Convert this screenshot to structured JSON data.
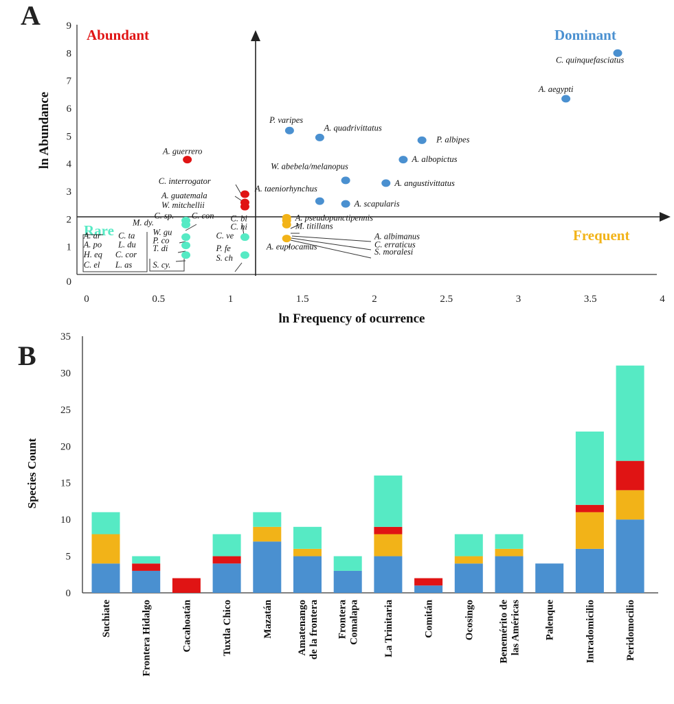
{
  "panels": {
    "a": "A",
    "b": "B"
  },
  "colors": {
    "dominant": "#4a90d0",
    "frequent": "#f2b318",
    "abundant": "#e01414",
    "rare": "#56eac4"
  },
  "chart_data": [
    {
      "type": "scatter",
      "panel": "A",
      "xlabel": "ln Frequency of ocurrence",
      "ylabel": "ln Abundance",
      "xlim": [
        0,
        4
      ],
      "ylim": [
        0,
        9
      ],
      "x_ticks": [
        "0",
        "0.5",
        "1",
        "1.5",
        "2",
        "2.5",
        "3",
        "3.5",
        "4"
      ],
      "y_ticks": [
        "0",
        "1",
        "2",
        "3",
        "4",
        "5",
        "6",
        "7",
        "8",
        "9"
      ],
      "quadrants": {
        "abundant": "Abundant",
        "dominant": "Dominant",
        "rare": "Rare",
        "frequent": "Frequent"
      },
      "points": [
        {
          "group": "dominant",
          "x": 3.69,
          "y": 8.0
        },
        {
          "group": "dominant",
          "x": 3.33,
          "y": 6.35
        },
        {
          "group": "dominant",
          "x": 1.41,
          "y": 5.2
        },
        {
          "group": "dominant",
          "x": 1.62,
          "y": 4.95
        },
        {
          "group": "dominant",
          "x": 2.33,
          "y": 4.85
        },
        {
          "group": "dominant",
          "x": 2.2,
          "y": 4.15
        },
        {
          "group": "dominant",
          "x": 1.8,
          "y": 3.4
        },
        {
          "group": "dominant",
          "x": 2.08,
          "y": 3.3
        },
        {
          "group": "dominant",
          "x": 1.62,
          "y": 2.65
        },
        {
          "group": "dominant",
          "x": 1.8,
          "y": 2.55
        },
        {
          "group": "abundant",
          "x": 0.7,
          "y": 4.15
        },
        {
          "group": "abundant",
          "x": 1.1,
          "y": 2.9
        },
        {
          "group": "abundant",
          "x": 1.1,
          "y": 2.6
        },
        {
          "group": "abundant",
          "x": 1.1,
          "y": 2.45
        },
        {
          "group": "frequent",
          "x": 1.39,
          "y": 2.05
        },
        {
          "group": "frequent",
          "x": 1.39,
          "y": 1.95
        },
        {
          "group": "frequent",
          "x": 1.39,
          "y": 1.8
        },
        {
          "group": "frequent",
          "x": 1.39,
          "y": 1.3
        },
        {
          "group": "rare",
          "x": 0.69,
          "y": 1.95
        },
        {
          "group": "rare",
          "x": 0.69,
          "y": 1.8
        },
        {
          "group": "rare",
          "x": 0.69,
          "y": 1.35
        },
        {
          "group": "rare",
          "x": 0.69,
          "y": 1.05
        },
        {
          "group": "rare",
          "x": 0.69,
          "y": 0.7
        },
        {
          "group": "rare",
          "x": 1.1,
          "y": 1.35
        },
        {
          "group": "rare",
          "x": 1.1,
          "y": 0.7
        }
      ],
      "labels": [
        {
          "text": "C. quinquefasciatus",
          "x": 3.26,
          "y": 7.65
        },
        {
          "text": "A. aegypti",
          "x": 3.14,
          "y": 6.6
        },
        {
          "text": "P. varipes",
          "x": 1.27,
          "y": 5.48
        },
        {
          "text": "A. quadrivittatus",
          "x": 1.65,
          "y": 5.2
        },
        {
          "text": "P. albipes",
          "x": 2.43,
          "y": 4.77
        },
        {
          "text": "A. albopictus",
          "x": 2.26,
          "y": 4.06
        },
        {
          "text": "W. abebela/melanopus",
          "x": 1.28,
          "y": 3.8
        },
        {
          "text": "A. angustivittatus",
          "x": 2.14,
          "y": 3.2
        },
        {
          "text": "A. taeniorhynchus",
          "x": 1.17,
          "y": 3.0
        },
        {
          "text": "A. scapularis",
          "x": 1.86,
          "y": 2.46
        },
        {
          "text": "A. guerrero",
          "x": 0.53,
          "y": 4.35
        },
        {
          "text": "C. interrogator",
          "x": 0.5,
          "y": 3.27
        },
        {
          "text": "A. guatemala",
          "x": 0.52,
          "y": 2.75
        },
        {
          "text": "W. mitchellii",
          "x": 0.52,
          "y": 2.4
        },
        {
          "text": "A. pseudopunctipennis",
          "x": 1.45,
          "y": 1.95
        },
        {
          "text": "M. titillans",
          "x": 1.45,
          "y": 1.65
        },
        {
          "text": "A. albimanus",
          "x": 2.0,
          "y": 1.28
        },
        {
          "text": "A. euplocamus",
          "x": 1.25,
          "y": 0.9
        },
        {
          "text": "C. erraticus",
          "x": 2.0,
          "y": 0.98
        },
        {
          "text": "S. moralesi",
          "x": 2.0,
          "y": 0.72
        },
        {
          "text": "C. sp.",
          "x": 0.47,
          "y": 2.02
        },
        {
          "text": "C. con",
          "x": 0.73,
          "y": 2.02
        },
        {
          "text": "M. dy.",
          "x": 0.32,
          "y": 1.77
        },
        {
          "text": "C. bi",
          "x": 1.0,
          "y": 1.92
        },
        {
          "text": "C. ni",
          "x": 1.0,
          "y": 1.63
        },
        {
          "text": "W. gu",
          "x": 0.46,
          "y": 1.43
        },
        {
          "text": "C. ve",
          "x": 0.9,
          "y": 1.3
        },
        {
          "text": "A. ar",
          "x": -0.02,
          "y": 1.3
        },
        {
          "text": "C. ta",
          "x": 0.22,
          "y": 1.3
        },
        {
          "text": "P. co",
          "x": 0.46,
          "y": 1.13
        },
        {
          "text": "A. po",
          "x": -0.02,
          "y": 0.98
        },
        {
          "text": "L. du",
          "x": 0.22,
          "y": 0.98
        },
        {
          "text": "T. di",
          "x": 0.46,
          "y": 0.84
        },
        {
          "text": "P. fe",
          "x": 0.9,
          "y": 0.84
        },
        {
          "text": "H. eq",
          "x": -0.02,
          "y": 0.62
        },
        {
          "text": "C. cor",
          "x": 0.2,
          "y": 0.62
        },
        {
          "text": "S. ch",
          "x": 0.9,
          "y": 0.5
        },
        {
          "text": "C. el",
          "x": -0.02,
          "y": 0.25
        },
        {
          "text": "L. as",
          "x": 0.2,
          "y": 0.25
        },
        {
          "text": "S. cy.",
          "x": 0.46,
          "y": 0.25
        }
      ]
    },
    {
      "type": "bar",
      "panel": "B",
      "stacked": true,
      "ylabel": "Species Count",
      "ylim": [
        0,
        35
      ],
      "y_ticks": [
        "0",
        "5",
        "10",
        "15",
        "20",
        "25",
        "30",
        "35"
      ],
      "categories": [
        [
          "Suchiate"
        ],
        [
          "Frontera Hidalgo"
        ],
        [
          "Cacahoatán"
        ],
        [
          "Tuxtla Chico"
        ],
        [
          "Mazatán"
        ],
        [
          "Amatenango",
          "de la frontera"
        ],
        [
          "Frontera",
          "Comalapa"
        ],
        [
          "La Trinitaria"
        ],
        [
          "Comitán"
        ],
        [
          "Ocosingo"
        ],
        [
          "Benemérito de",
          "las Américas"
        ],
        [
          "Palenque"
        ],
        [
          "Intradomicilio"
        ],
        [
          "Peridomocilio"
        ]
      ],
      "series": [
        {
          "group": "dominant",
          "values": [
            4,
            3,
            0,
            4,
            7,
            5,
            3,
            5,
            1,
            4,
            5,
            4,
            6,
            10
          ]
        },
        {
          "group": "frequent",
          "values": [
            4,
            0,
            0,
            0,
            2,
            1,
            0,
            3,
            0,
            1,
            1,
            0,
            5,
            4
          ]
        },
        {
          "group": "abundant",
          "values": [
            0,
            1,
            2,
            1,
            0,
            0,
            0,
            1,
            1,
            0,
            0,
            0,
            1,
            4
          ]
        },
        {
          "group": "rare",
          "values": [
            3,
            1,
            0,
            3,
            2,
            3,
            2,
            7,
            0,
            3,
            2,
            0,
            10,
            13
          ]
        }
      ]
    }
  ]
}
